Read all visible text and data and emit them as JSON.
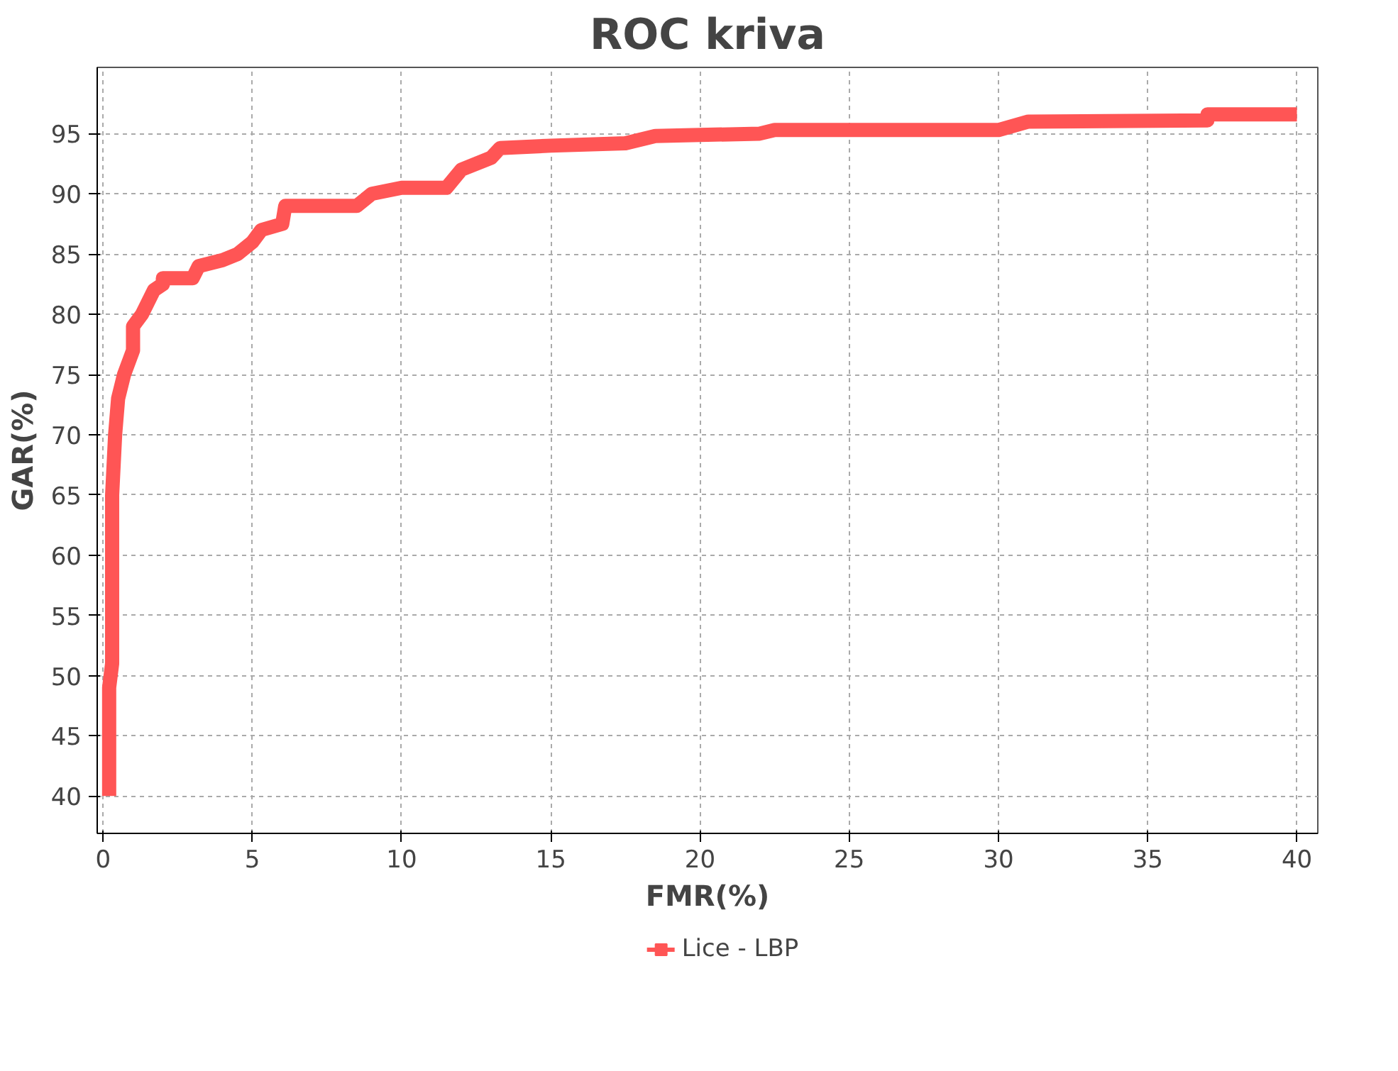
{
  "chart_data": {
    "type": "line",
    "title": "ROC kriva",
    "xlabel": "FMR(%)",
    "ylabel": "GAR(%)",
    "xlim": [
      -0.2,
      40.7
    ],
    "ylim": [
      36.9,
      100.5
    ],
    "xticks": [
      0,
      5,
      10,
      15,
      20,
      25,
      30,
      35,
      40
    ],
    "yticks": [
      40,
      45,
      50,
      55,
      60,
      65,
      70,
      75,
      80,
      85,
      90,
      95
    ],
    "grid": true,
    "legend": "bottom",
    "marker": "none",
    "line_style": "solid",
    "series": [
      {
        "name": "Lice - LBP",
        "color": "#ff5555",
        "x": [
          0.2,
          0.2,
          0.3,
          0.3,
          0.3,
          0.4,
          0.5,
          0.7,
          1,
          1,
          1.3,
          1.5,
          1.7,
          2,
          2,
          3,
          3.2,
          4,
          4.5,
          5,
          5.3,
          6,
          6.1,
          8.5,
          9,
          10,
          11.5,
          12,
          13,
          13.3,
          15,
          17.5,
          18.5,
          22,
          22.5,
          30,
          31,
          37,
          37,
          40
        ],
        "values": [
          40,
          49,
          51,
          60,
          65,
          70,
          73,
          75,
          77,
          79,
          80,
          81,
          82,
          82.5,
          83,
          83,
          84,
          84.5,
          85,
          86,
          87,
          87.5,
          89,
          89,
          90,
          90.5,
          90.5,
          92,
          93,
          93.8,
          94,
          94.2,
          94.8,
          95,
          95.3,
          95.3,
          96,
          96.1,
          96.6,
          96.6
        ]
      }
    ]
  }
}
